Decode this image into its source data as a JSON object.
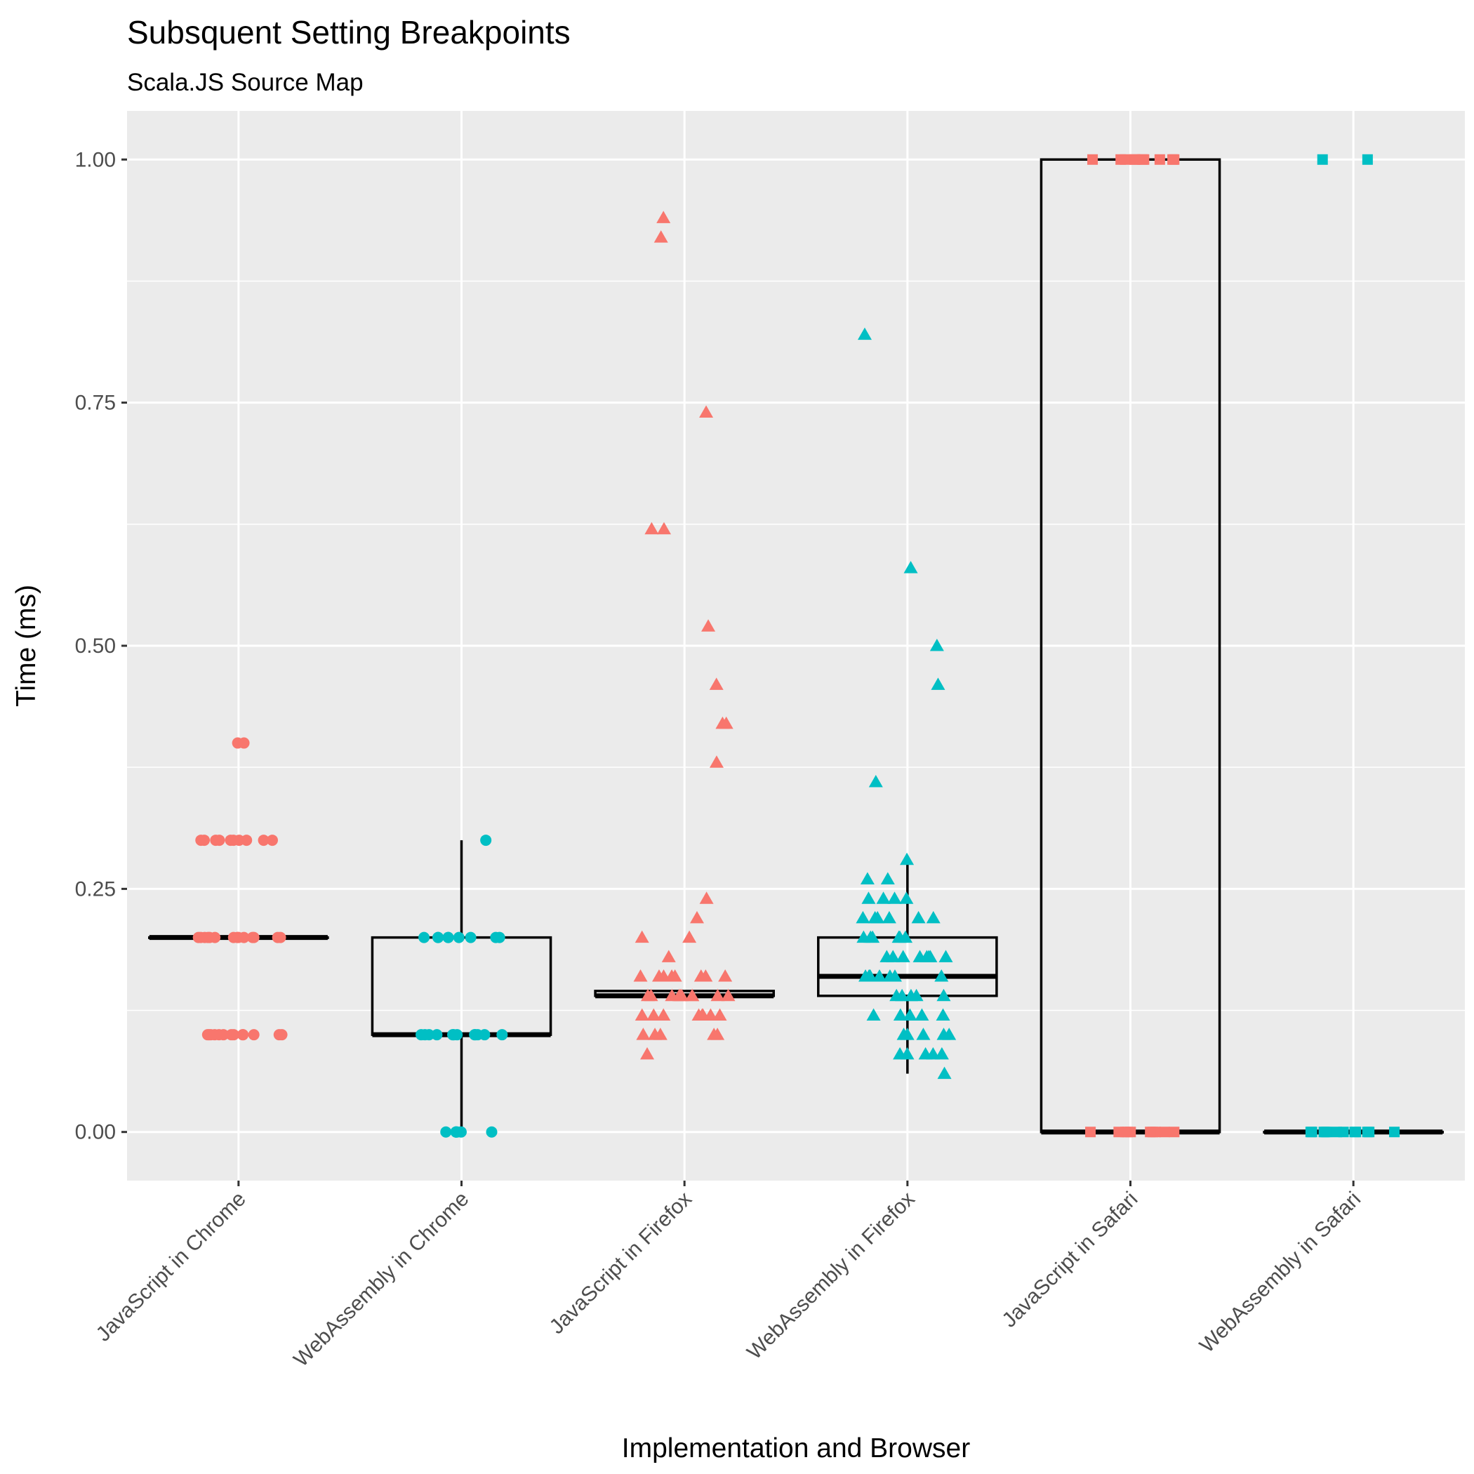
{
  "chart_data": {
    "type": "boxplot",
    "title": "Subsquent Setting Breakpoints",
    "subtitle": "Scala.JS Source Map",
    "xlabel": "Implementation and Browser",
    "ylabel": "Time (ms)",
    "ylim": [
      -0.05,
      1.05
    ],
    "yticks": [
      0.0,
      0.25,
      0.5,
      0.75,
      1.0
    ],
    "ytick_labels": [
      "0.00",
      "0.25",
      "0.50",
      "0.75",
      "1.00"
    ],
    "categories": [
      "JavaScript in Chrome",
      "WebAssembly in Chrome",
      "JavaScript in Firefox",
      "WebAssembly in Firefox",
      "JavaScript in Safari",
      "WebAssembly in Safari"
    ],
    "grid": true,
    "colors": {
      "javascript": "#F8766D",
      "webassembly": "#00BFC4",
      "panel": "#EBEBEB",
      "grid": "#FFFFFF",
      "box": "#000000"
    },
    "boxes": [
      {
        "category": "JavaScript in Chrome",
        "q1": 0.2,
        "median": 0.2,
        "q3": 0.2,
        "whisker_low": 0.2,
        "whisker_high": 0.2
      },
      {
        "category": "WebAssembly in Chrome",
        "q1": 0.1,
        "median": 0.1,
        "q3": 0.2,
        "whisker_low": 0.0,
        "whisker_high": 0.3
      },
      {
        "category": "JavaScript in Firefox",
        "q1": 0.14,
        "median": 0.14,
        "q3": 0.145,
        "whisker_low": 0.14,
        "whisker_high": 0.145
      },
      {
        "category": "WebAssembly in Firefox",
        "q1": 0.14,
        "median": 0.16,
        "q3": 0.2,
        "whisker_low": 0.06,
        "whisker_high": 0.28
      },
      {
        "category": "JavaScript in Safari",
        "q1": 0.0,
        "median": 0.0,
        "q3": 1.0,
        "whisker_low": 0.0,
        "whisker_high": 1.0
      },
      {
        "category": "WebAssembly in Safari",
        "q1": 0.0,
        "median": 0.0,
        "q3": 0.0,
        "whisker_low": 0.0,
        "whisker_high": 0.0
      }
    ],
    "points": [
      {
        "category": "JavaScript in Chrome",
        "shape": "circle",
        "color": "javascript",
        "values": [
          0.4,
          0.4,
          0.3,
          0.3,
          0.3,
          0.3,
          0.3,
          0.3,
          0.3,
          0.3,
          0.3,
          0.3,
          0.2,
          0.2,
          0.2,
          0.2,
          0.2,
          0.2,
          0.2,
          0.2,
          0.2,
          0.2,
          0.2,
          0.2,
          0.2,
          0.2,
          0.1,
          0.1,
          0.1,
          0.1,
          0.1,
          0.1,
          0.1,
          0.1,
          0.1,
          0.1,
          0.1,
          0.1,
          0.1
        ]
      },
      {
        "category": "WebAssembly in Chrome",
        "shape": "circle",
        "color": "webassembly",
        "values": [
          0.3,
          0.2,
          0.2,
          0.2,
          0.2,
          0.2,
          0.2,
          0.2,
          0.2,
          0.2,
          0.1,
          0.1,
          0.1,
          0.1,
          0.1,
          0.1,
          0.1,
          0.1,
          0.1,
          0.1,
          0.1,
          0.1,
          0.0,
          0.0,
          0.0,
          0.0,
          0.0,
          0.0,
          0.0
        ]
      },
      {
        "category": "JavaScript in Firefox",
        "shape": "triangle",
        "color": "javascript",
        "values": [
          0.94,
          0.92,
          0.74,
          0.62,
          0.62,
          0.52,
          0.46,
          0.42,
          0.42,
          0.38,
          0.24,
          0.22,
          0.2,
          0.2,
          0.18,
          0.16,
          0.16,
          0.16,
          0.16,
          0.16,
          0.16,
          0.16,
          0.16,
          0.14,
          0.14,
          0.14,
          0.14,
          0.14,
          0.14,
          0.14,
          0.14,
          0.14,
          0.14,
          0.12,
          0.12,
          0.12,
          0.12,
          0.12,
          0.12,
          0.12,
          0.12,
          0.1,
          0.1,
          0.1,
          0.1,
          0.1,
          0.08
        ]
      },
      {
        "category": "WebAssembly in Firefox",
        "shape": "triangle",
        "color": "webassembly",
        "values": [
          0.82,
          0.58,
          0.5,
          0.46,
          0.36,
          0.28,
          0.26,
          0.26,
          0.24,
          0.24,
          0.24,
          0.24,
          0.22,
          0.22,
          0.22,
          0.22,
          0.22,
          0.22,
          0.2,
          0.2,
          0.2,
          0.2,
          0.2,
          0.2,
          0.18,
          0.18,
          0.18,
          0.18,
          0.18,
          0.18,
          0.18,
          0.18,
          0.16,
          0.16,
          0.16,
          0.16,
          0.16,
          0.16,
          0.16,
          0.16,
          0.14,
          0.14,
          0.14,
          0.14,
          0.14,
          0.12,
          0.12,
          0.12,
          0.12,
          0.12,
          0.1,
          0.1,
          0.1,
          0.1,
          0.1,
          0.08,
          0.08,
          0.08,
          0.08,
          0.08,
          0.06
        ]
      },
      {
        "category": "JavaScript in Safari",
        "shape": "square",
        "color": "javascript",
        "values": [
          1.0,
          1.0,
          1.0,
          1.0,
          1.0,
          1.0,
          1.0,
          1.0,
          1.0,
          1.0,
          0.0,
          0.0,
          0.0,
          0.0,
          0.0,
          0.0,
          0.0,
          0.0,
          0.0,
          0.0
        ]
      },
      {
        "category": "WebAssembly in Safari",
        "shape": "square",
        "color": "webassembly",
        "values": [
          1.0,
          1.0,
          0.0,
          0.0,
          0.0,
          0.0,
          0.0,
          0.0,
          0.0,
          0.0,
          0.0,
          0.0,
          0.0,
          0.0
        ]
      }
    ]
  }
}
